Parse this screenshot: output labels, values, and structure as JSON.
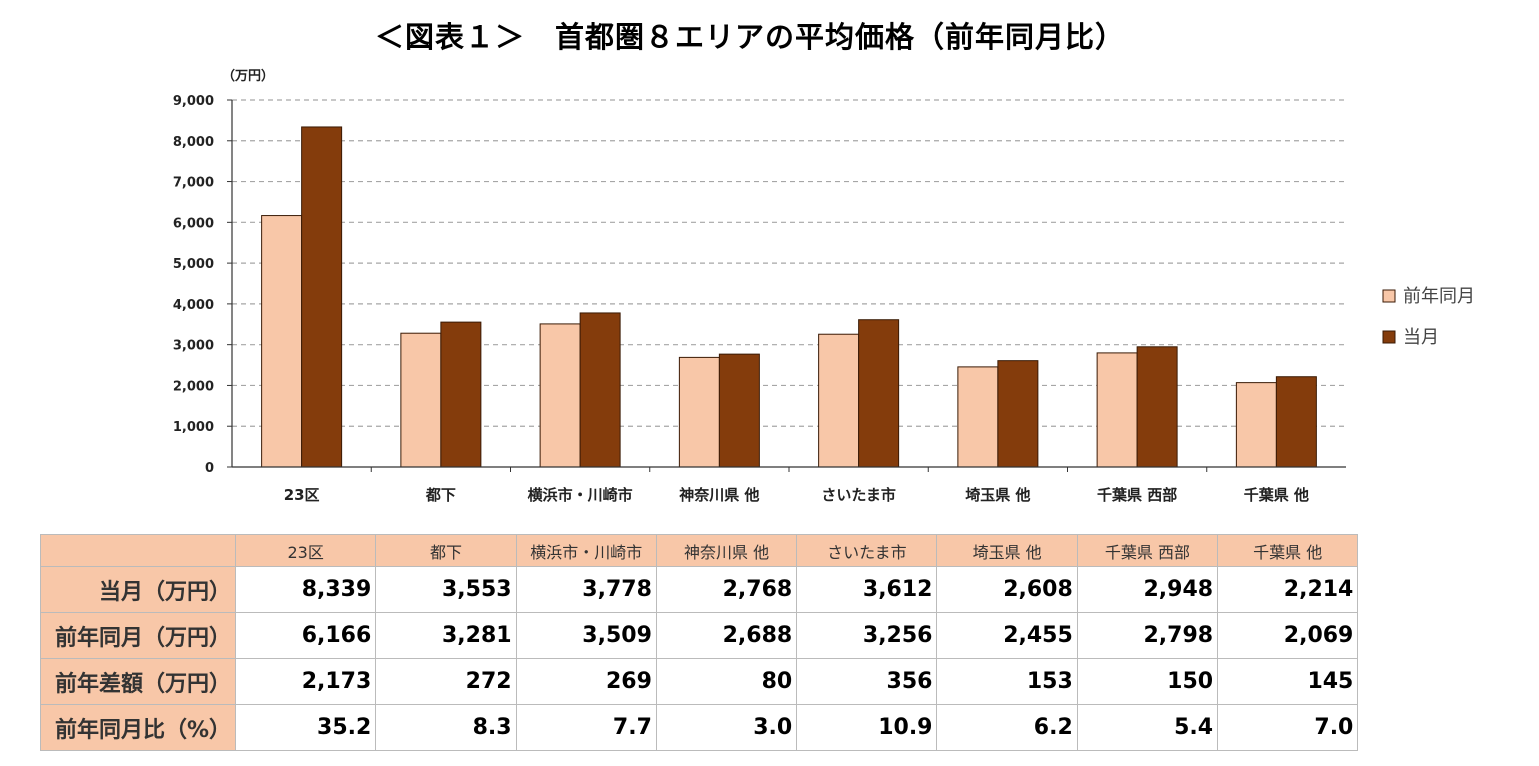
{
  "title": "＜図表１＞　首都圏８エリアの平均価格（前年同月比）",
  "colors": {
    "prev": "#f8c7a8",
    "curr": "#843c0c",
    "grid": "#a6a6a6",
    "table_header": "#f8c7a8"
  },
  "chart_data": {
    "type": "bar",
    "unit_label": "（万円）",
    "categories": [
      "23区",
      "都下",
      "横浜市・川崎市",
      "神奈川県 他",
      "さいたま市",
      "埼玉県 他",
      "千葉県 西部",
      "千葉県 他"
    ],
    "series": [
      {
        "name": "前年同月",
        "color": "#f8c7a8",
        "values": [
          6166,
          3281,
          3509,
          2688,
          3256,
          2455,
          2798,
          2069
        ]
      },
      {
        "name": "当月",
        "color": "#843c0c",
        "values": [
          8339,
          3553,
          3778,
          2768,
          3612,
          2608,
          2948,
          2214
        ]
      }
    ],
    "ylim": [
      0,
      9000
    ],
    "yticks": [
      "0",
      "1,000",
      "2,000",
      "3,000",
      "4,000",
      "5,000",
      "6,000",
      "7,000",
      "8,000",
      "9,000"
    ],
    "ytick_values": [
      0,
      1000,
      2000,
      3000,
      4000,
      5000,
      6000,
      7000,
      8000,
      9000
    ],
    "grid": "dashed horizontal",
    "legend_position": "right"
  },
  "table": {
    "columns": [
      "23区",
      "都下",
      "横浜市・川崎市",
      "神奈川県 他",
      "さいたま市",
      "埼玉県 他",
      "千葉県 西部",
      "千葉県 他"
    ],
    "rows": [
      {
        "label": "当月（万円）",
        "values": [
          "8,339",
          "3,553",
          "3,778",
          "2,768",
          "3,612",
          "2,608",
          "2,948",
          "2,214"
        ]
      },
      {
        "label": "前年同月（万円）",
        "values": [
          "6,166",
          "3,281",
          "3,509",
          "2,688",
          "3,256",
          "2,455",
          "2,798",
          "2,069"
        ]
      },
      {
        "label": "前年差額（万円）",
        "values": [
          "2,173",
          "272",
          "269",
          "80",
          "356",
          "153",
          "150",
          "145"
        ]
      },
      {
        "label": "前年同月比（%）",
        "values": [
          "35.2",
          "8.3",
          "7.7",
          "3.0",
          "10.9",
          "6.2",
          "5.4",
          "7.0"
        ]
      }
    ]
  }
}
